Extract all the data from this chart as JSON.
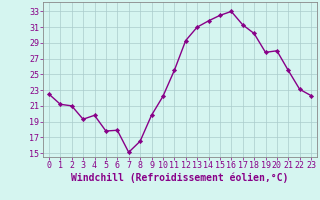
{
  "x": [
    0,
    1,
    2,
    3,
    4,
    5,
    6,
    7,
    8,
    9,
    10,
    11,
    12,
    13,
    14,
    15,
    16,
    17,
    18,
    19,
    20,
    21,
    22,
    23
  ],
  "y": [
    22.5,
    21.2,
    21.0,
    19.3,
    19.8,
    17.8,
    17.9,
    15.1,
    16.5,
    19.8,
    22.2,
    25.5,
    29.3,
    31.0,
    31.8,
    32.5,
    33.0,
    31.3,
    30.2,
    27.8,
    28.0,
    25.5,
    23.1,
    22.3
  ],
  "line_color": "#880088",
  "marker": "D",
  "marker_size": 2.2,
  "background_color": "#d5f5f0",
  "grid_color": "#aacccc",
  "xlabel": "Windchill (Refroidissement éolien,°C)",
  "xlabel_color": "#880088",
  "xlabel_fontsize": 7.0,
  "ylabel_ticks": [
    15,
    17,
    19,
    21,
    23,
    25,
    27,
    29,
    31,
    33
  ],
  "xticks": [
    0,
    1,
    2,
    3,
    4,
    5,
    6,
    7,
    8,
    9,
    10,
    11,
    12,
    13,
    14,
    15,
    16,
    17,
    18,
    19,
    20,
    21,
    22,
    23
  ],
  "ylim": [
    14.5,
    34.2
  ],
  "xlim": [
    -0.5,
    23.5
  ],
  "tick_fontsize": 6.0,
  "tick_color": "#880088",
  "line_width": 1.0,
  "spine_color": "#888888"
}
